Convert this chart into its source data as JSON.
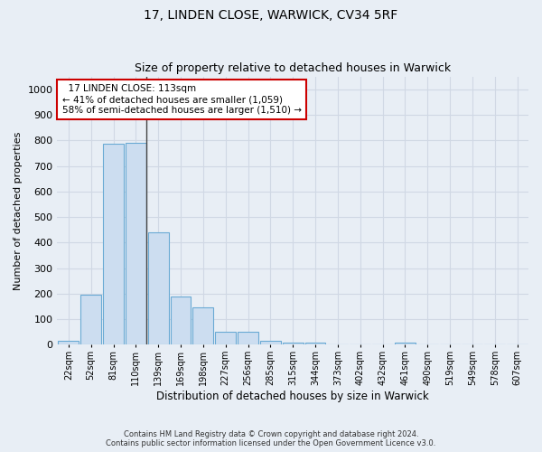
{
  "title": "17, LINDEN CLOSE, WARWICK, CV34 5RF",
  "subtitle": "Size of property relative to detached houses in Warwick",
  "xlabel": "Distribution of detached houses by size in Warwick",
  "ylabel": "Number of detached properties",
  "footer_line1": "Contains HM Land Registry data © Crown copyright and database right 2024.",
  "footer_line2": "Contains public sector information licensed under the Open Government Licence v3.0.",
  "annotation_line1": "  17 LINDEN CLOSE: 113sqm",
  "annotation_line2": "← 41% of detached houses are smaller (1,059)",
  "annotation_line3": "58% of semi-detached houses are larger (1,510) →",
  "bar_labels": [
    "22sqm",
    "52sqm",
    "81sqm",
    "110sqm",
    "139sqm",
    "169sqm",
    "198sqm",
    "227sqm",
    "256sqm",
    "285sqm",
    "315sqm",
    "344sqm",
    "373sqm",
    "402sqm",
    "432sqm",
    "461sqm",
    "490sqm",
    "519sqm",
    "549sqm",
    "578sqm",
    "607sqm"
  ],
  "bar_values": [
    15,
    195,
    785,
    790,
    440,
    190,
    145,
    50,
    50,
    15,
    10,
    10,
    0,
    0,
    0,
    8,
    0,
    0,
    0,
    0,
    0
  ],
  "bar_color": "#ccddf0",
  "bar_edge_color": "#6aaad4",
  "highlight_bar_index": 3,
  "highlight_line_color": "#444444",
  "annotation_box_edge_color": "#cc0000",
  "annotation_box_fill": "#ffffff",
  "grid_color": "#d0d8e4",
  "background_color": "#e8eef5",
  "ylim": [
    0,
    1050
  ],
  "yticks": [
    0,
    100,
    200,
    300,
    400,
    500,
    600,
    700,
    800,
    900,
    1000
  ]
}
